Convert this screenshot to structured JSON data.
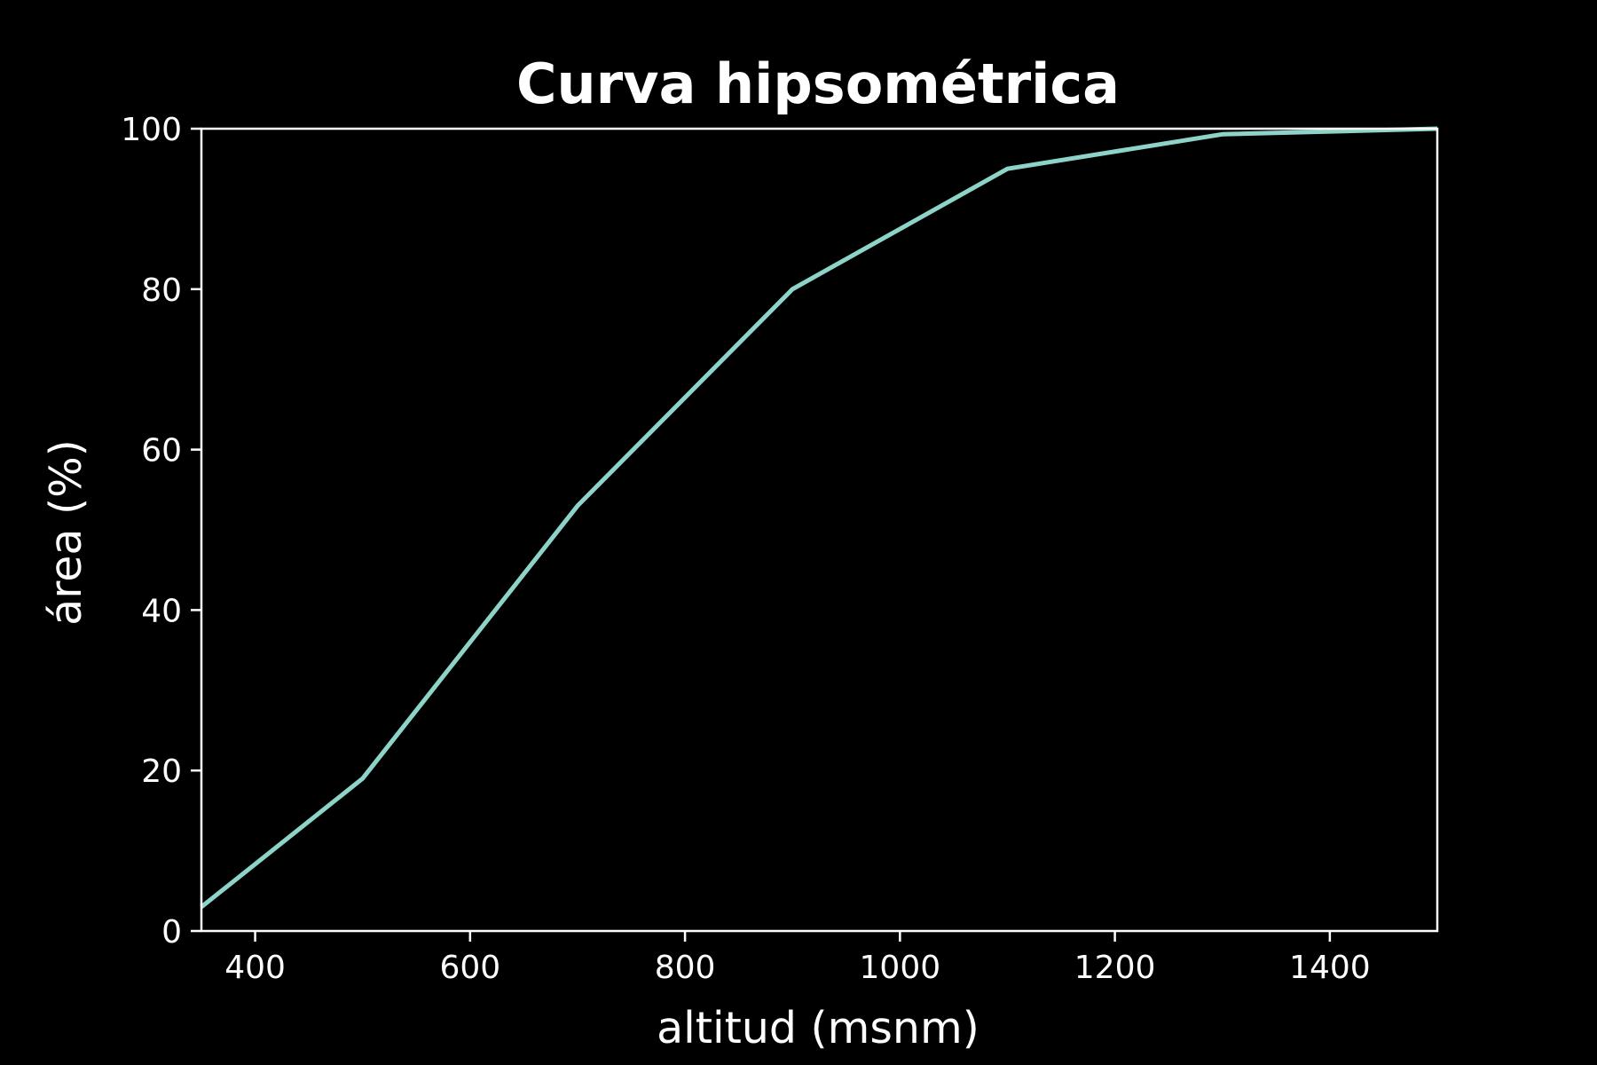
{
  "chart_data": {
    "type": "line",
    "title": "Curva hipsométrica",
    "xlabel": "altitud (msnm)",
    "ylabel": "área (%)",
    "xlim": [
      350,
      1500
    ],
    "ylim": [
      0,
      100
    ],
    "x_ticks": [
      400,
      600,
      800,
      1000,
      1200,
      1400
    ],
    "y_ticks": [
      0,
      20,
      40,
      60,
      80,
      100
    ],
    "grid": false,
    "series": [
      {
        "x": [
          350,
          500,
          700,
          900,
          1100,
          1300,
          1500
        ],
        "y": [
          3,
          19,
          53,
          80,
          95,
          99.3,
          100
        ]
      }
    ],
    "colors": {
      "background": "#000000",
      "line": "#8dd3c7",
      "axes": "#ffffff",
      "text": "#ffffff"
    }
  }
}
